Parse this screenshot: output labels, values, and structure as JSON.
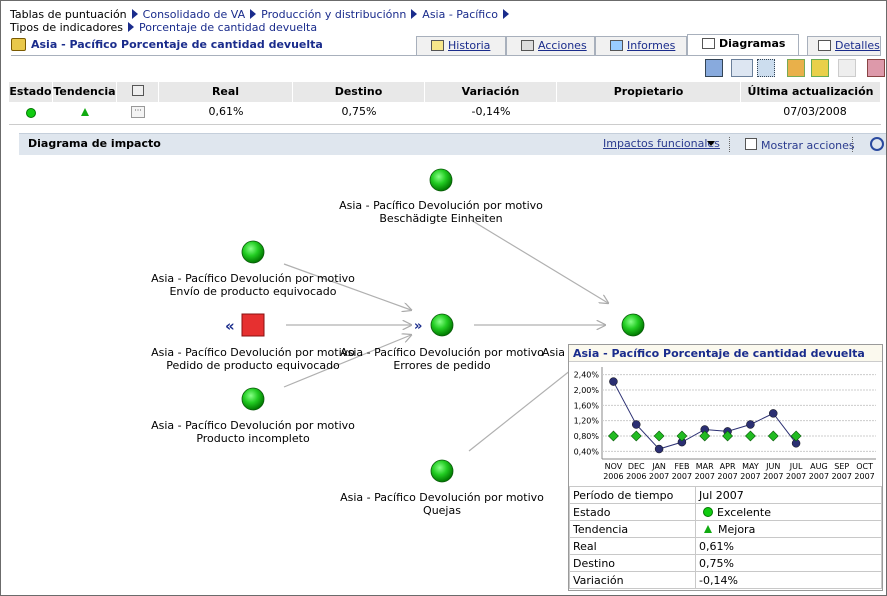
{
  "breadcrumb": [
    "Tablas de puntuación",
    "Consolidado de VA",
    "Producción y distribuciónn",
    "Asia - Pacífico",
    "Tipos de indicadores",
    "Porcentaje de cantidad devuelta"
  ],
  "title": "Asia - Pacífico Porcentaje de cantidad devuelta",
  "tabs": [
    "Historia",
    "Acciones",
    "Informes",
    "Diagramas",
    "Detalles"
  ],
  "table": {
    "headers": [
      "Estado",
      "Tendencia",
      "Real",
      "Destino",
      "Variación",
      "Propietario",
      "Última actualización"
    ],
    "row": {
      "real": "0,61%",
      "destino": "0,75%",
      "variacion": "-0,14%",
      "ultima": "07/03/2008"
    }
  },
  "panel": {
    "title": "Diagrama de impacto",
    "menu": "Impactos funcionales",
    "checkbox": "Mostrar acciones"
  },
  "nodes": [
    {
      "lines": [
        "Asia - Pacífico Devolución por motivo",
        "Beschädigte Einheiten"
      ]
    },
    {
      "lines": [
        "Asia - Pacífico Devolución por motivo",
        "Envío de producto equivocado"
      ]
    },
    {
      "lines": [
        "Asia - Pacífico Devolución por motivo",
        "Pedido de producto equivocado"
      ]
    },
    {
      "lines": [
        "Asia - Pacífico Devolución por motivo",
        "Producto incompleto"
      ]
    },
    {
      "lines": [
        "Asia - Pacífico Devolución por motivo",
        "Errores de pedido"
      ]
    },
    {
      "lines": [
        "Asia - Pacífico Devolución por motivo",
        "Quejas"
      ]
    },
    {
      "lines": [
        "Asia -"
      ]
    }
  ],
  "tooltip": {
    "title": "Asia - Pacífico Porcentaje de cantidad devuelta",
    "chart_data": {
      "type": "line",
      "categories": [
        "NOV 2006",
        "DEC 2006",
        "JAN 2007",
        "FEB 2007",
        "MAR 2007",
        "APR 2007",
        "MAY 2007",
        "JUN 2007",
        "JUL 2007",
        "AUG 2007",
        "SEP 2007",
        "OCT 2007"
      ],
      "series": [
        {
          "color": "#2b2f72",
          "marker": "circle",
          "line": true,
          "values": [
            2.22,
            1.1,
            0.46,
            0.64,
            0.97,
            0.92,
            1.1,
            1.39,
            0.61,
            null,
            null,
            null
          ]
        },
        {
          "color": "#22bb22",
          "marker": "diamond",
          "line": false,
          "values": [
            0.8,
            0.8,
            0.8,
            0.8,
            0.8,
            0.8,
            0.8,
            0.8,
            0.8,
            null,
            null,
            null
          ]
        }
      ],
      "ylim": [
        0.2,
        2.6
      ],
      "yticks": [
        {
          "value": 0.4,
          "label": "0,40%"
        },
        {
          "value": 0.8,
          "label": "0,80%"
        },
        {
          "value": 1.2,
          "label": "1,20%"
        },
        {
          "value": 1.6,
          "label": "1,60%"
        },
        {
          "value": 2.0,
          "label": "2,00%"
        },
        {
          "value": 2.4,
          "label": "2,40%"
        }
      ],
      "grid": true
    },
    "details": [
      [
        "Período de tiempo",
        "Jul 2007"
      ],
      [
        "Estado",
        "Excelente"
      ],
      [
        "Tendencia",
        "Mejora"
      ],
      [
        "Real",
        "0,61%"
      ],
      [
        "Destino",
        "0,75%"
      ],
      [
        "Variación",
        "-0,14%"
      ]
    ]
  }
}
